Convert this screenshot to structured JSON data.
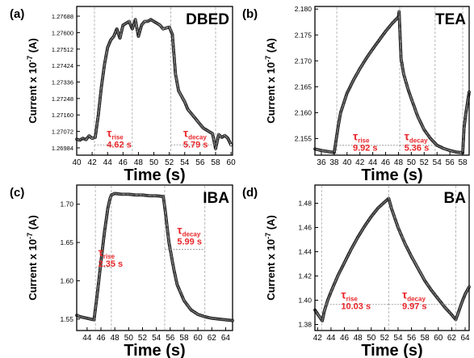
{
  "figure": {
    "ylabel_main": "Current x 10",
    "ylabel_exp": "-7",
    "ylabel_unit": " (A)",
    "xlabel": "Time (s)",
    "tau_symbol": "τ",
    "annotation_color": "#e8262a",
    "marker_color": "#1a1a1a",
    "guide_color": "#b0b0b0"
  },
  "chart_data": [
    {
      "panel_label": "(a)",
      "title": "DBED",
      "type": "line",
      "markers": "open-circle",
      "xlim": [
        40,
        60.2
      ],
      "ylim": [
        1.26945,
        1.2774
      ],
      "x_ticks": [
        40,
        42,
        44,
        46,
        48,
        50,
        52,
        54,
        56,
        58,
        60
      ],
      "y_ticks": [
        1.26984,
        1.27072,
        1.2716,
        1.27248,
        1.27336,
        1.27424,
        1.27512,
        1.276,
        1.27688
      ],
      "y_tick_labels": [
        "1.26984",
        "1.27072",
        "1.27160",
        "1.27248",
        "1.27336",
        "1.27424",
        "1.27512",
        "1.27600",
        "1.27688"
      ],
      "guides_x": [
        42.3,
        47.2,
        52.2,
        58.0
      ],
      "tau_rise": {
        "label": "rise",
        "value": "4.62 s",
        "x": 43.9,
        "y": 1.27042,
        "span": [
          42.3,
          47.0
        ],
        "line_y": 1.27
      },
      "tau_decay": {
        "label": "decay",
        "value": "5.79 s",
        "x": 53.8,
        "y": 1.27042,
        "span": [
          52.2,
          58.0
        ],
        "line_y": 1.27
      },
      "series": [
        {
          "x": [
            40.0,
            40.4,
            40.8,
            41.2,
            41.6,
            42.0,
            42.4,
            42.8,
            43.2,
            43.6,
            44.0,
            44.4,
            44.8,
            45.2,
            45.6,
            46.0,
            46.4,
            46.8,
            47.2,
            47.6,
            48.0,
            48.4,
            48.8,
            49.2,
            49.6,
            50.0,
            50.4,
            50.8,
            51.2,
            51.6,
            52.0,
            52.4,
            52.8,
            53.2,
            53.6,
            54.0,
            54.4,
            54.8,
            55.2,
            55.6,
            56.0,
            56.4,
            56.8,
            57.2,
            57.6,
            58.0,
            58.4,
            58.8,
            59.2,
            59.6,
            60.0
          ],
          "y": [
            1.2703,
            1.27025,
            1.27035,
            1.27028,
            1.27048,
            1.27035,
            1.2704,
            1.2716,
            1.2731,
            1.2743,
            1.2752,
            1.2756,
            1.2758,
            1.2762,
            1.2757,
            1.2764,
            1.2765,
            1.2766,
            1.2762,
            1.2767,
            1.2758,
            1.2764,
            1.2766,
            1.2766,
            1.2767,
            1.2766,
            1.2765,
            1.2764,
            1.2762,
            1.27625,
            1.2763,
            1.2759,
            1.2738,
            1.2729,
            1.2726,
            1.2723,
            1.2719,
            1.2717,
            1.2715,
            1.2713,
            1.2711,
            1.2709,
            1.2708,
            1.2707,
            1.2706,
            1.2698,
            1.27055,
            1.2704,
            1.2705,
            1.27035,
            1.27
          ]
        }
      ]
    },
    {
      "panel_label": "(b)",
      "title": "TEA",
      "type": "line",
      "markers": "open-circle",
      "xlim": [
        35,
        59
      ],
      "ylim": [
        2.1518,
        2.1805
      ],
      "x_ticks": [
        36,
        38,
        40,
        42,
        44,
        46,
        48,
        50,
        52,
        54,
        56,
        58
      ],
      "y_ticks": [
        2.155,
        2.16,
        2.165,
        2.17,
        2.175,
        2.18
      ],
      "y_tick_labels": [
        "2.155",
        "2.160",
        "2.165",
        "2.170",
        "2.175",
        "2.180"
      ],
      "guides_x": [
        38.4,
        48.2,
        53.7,
        58.0
      ],
      "tau_rise": {
        "label": "rise",
        "value": "9.92 s",
        "x": 40.9,
        "y": 2.1547,
        "span": [
          38.4,
          48.2
        ],
        "line_y": 2.1537
      },
      "tau_decay": {
        "label": "decay",
        "value": "5.36 s",
        "x": 48.9,
        "y": 2.1547,
        "span": [
          48.2,
          53.7
        ],
        "line_y": 2.1537
      },
      "series": [
        {
          "x": [
            35.0,
            36.0,
            37.0,
            38.0,
            38.6,
            39.0,
            40.0,
            41.0,
            42.0,
            43.0,
            44.0,
            45.0,
            46.0,
            47.0,
            48.0,
            48.1,
            48.4,
            48.8,
            49.5,
            50.0,
            51.0,
            52.0,
            53.0,
            54.0,
            55.0,
            56.0,
            57.0,
            57.8,
            58.0,
            58.2,
            58.5,
            59.0
          ],
          "y": [
            2.153,
            2.1527,
            2.1525,
            2.1523,
            2.1572,
            2.16,
            2.1638,
            2.1663,
            2.1685,
            2.1705,
            2.1723,
            2.174,
            2.1757,
            2.1772,
            2.1785,
            2.1795,
            2.1705,
            2.1675,
            2.1645,
            2.1627,
            2.1593,
            2.1567,
            2.155,
            2.1537,
            2.1531,
            2.1527,
            2.1524,
            2.1523,
            2.1522,
            2.157,
            2.16,
            2.164
          ]
        }
      ]
    },
    {
      "panel_label": "(c)",
      "title": "IBA",
      "type": "line",
      "markers": "open-circle",
      "xlim": [
        42.5,
        65
      ],
      "ylim": [
        1.535,
        1.725
      ],
      "x_ticks": [
        44,
        46,
        48,
        50,
        52,
        54,
        56,
        58,
        60,
        62,
        64
      ],
      "y_ticks": [
        1.55,
        1.6,
        1.65,
        1.7
      ],
      "y_tick_labels": [
        "1.55",
        "1.60",
        "1.65",
        "1.70"
      ],
      "guides_x": [
        45.2,
        47.5,
        55.2,
        61.0
      ],
      "tau_rise": {
        "label": "rise",
        "value": "2.35 s",
        "x": 45.6,
        "y": 1.632,
        "span": [
          45.2,
          47.5
        ],
        "line_y": 1.618
      },
      "tau_decay": {
        "label": "decay",
        "value": "5.99 s",
        "x": 57.0,
        "y": 1.661,
        "span": [
          55.2,
          61.0
        ],
        "line_y": 1.641
      },
      "series": [
        {
          "x": [
            42.5,
            43.0,
            44.0,
            45.0,
            45.5,
            46.0,
            46.5,
            47.0,
            47.3,
            47.5,
            48.0,
            49.0,
            50.0,
            51.0,
            52.0,
            53.0,
            54.0,
            55.0,
            55.3,
            55.8,
            56.5,
            57.0,
            58.0,
            59.0,
            60.0,
            61.0,
            62.0,
            63.0,
            64.0,
            65.0
          ],
          "y": [
            1.555,
            1.553,
            1.551,
            1.549,
            1.585,
            1.625,
            1.663,
            1.695,
            1.707,
            1.712,
            1.714,
            1.713,
            1.713,
            1.712,
            1.712,
            1.711,
            1.711,
            1.71,
            1.69,
            1.651,
            1.616,
            1.595,
            1.574,
            1.562,
            1.556,
            1.553,
            1.551,
            1.55,
            1.549,
            1.548
          ]
        }
      ]
    },
    {
      "panel_label": "(d)",
      "title": "BA",
      "type": "line",
      "markers": "open-circle",
      "xlim": [
        41.6,
        64.6
      ],
      "ylim": [
        1.375,
        1.495
      ],
      "x_ticks": [
        42,
        44,
        46,
        48,
        50,
        52,
        54,
        56,
        58,
        60,
        62,
        64
      ],
      "y_ticks": [
        1.38,
        1.4,
        1.42,
        1.44,
        1.46,
        1.48
      ],
      "y_tick_labels": [
        "1.38",
        "1.40",
        "1.42",
        "1.44",
        "1.46",
        "1.48"
      ],
      "guides_x": [
        42.6,
        52.6,
        62.6
      ],
      "tau_rise": {
        "label": "rise",
        "value": "10.03 s",
        "x": 45.5,
        "y": 1.4015,
        "span": [
          42.6,
          52.6
        ],
        "line_y": 1.3965
      },
      "tau_decay": {
        "label": "decay",
        "value": "9.97 s",
        "x": 54.6,
        "y": 1.4015,
        "span": [
          52.6,
          62.6
        ],
        "line_y": 1.3965
      },
      "series": [
        {
          "x": [
            41.6,
            42.2,
            42.7,
            43.0,
            43.5,
            44.0,
            45.0,
            46.0,
            47.0,
            48.0,
            49.0,
            50.0,
            51.0,
            52.0,
            52.6,
            53.0,
            53.5,
            54.0,
            55.0,
            56.0,
            57.0,
            58.0,
            59.0,
            60.0,
            61.0,
            62.0,
            62.6,
            63.0,
            63.5,
            64.0,
            64.6
          ],
          "y": [
            1.392,
            1.387,
            1.383,
            1.391,
            1.4,
            1.407,
            1.42,
            1.431,
            1.442,
            1.452,
            1.461,
            1.469,
            1.476,
            1.481,
            1.484,
            1.476,
            1.468,
            1.46,
            1.447,
            1.436,
            1.426,
            1.416,
            1.408,
            1.401,
            1.394,
            1.388,
            1.384,
            1.39,
            1.398,
            1.405,
            1.411
          ]
        }
      ]
    }
  ]
}
